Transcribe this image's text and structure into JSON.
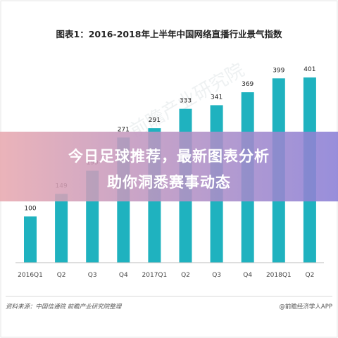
{
  "banner": {
    "line1": "今日足球推荐，最新图表分析",
    "line2": "助你洞悉赛事动态"
  },
  "footer": {
    "source": "资料来源：中国信通院   前瞻产业研究院整理",
    "credit": "@前瞻经济学人APP"
  },
  "watermark": "前瞻产业研究院",
  "colors": {
    "bar": "#1fb2bf",
    "banner_start": "#e8a9b0",
    "banner_end": "#8a7fd6"
  },
  "chart_data": {
    "type": "bar",
    "title": "图表1：2016-2018年上半年中国网络直播行业景气指数",
    "categories": [
      "2016Q1",
      "Q2",
      "Q3",
      "Q4",
      "2017Q1",
      "Q2",
      "Q3",
      "Q4",
      "2018Q1",
      "Q2"
    ],
    "values": [
      100,
      149,
      199,
      271,
      291,
      333,
      341,
      369,
      399,
      401
    ],
    "xlabel": "",
    "ylabel": "",
    "ylim": [
      0,
      401
    ],
    "grid": false,
    "data_labels": true
  }
}
